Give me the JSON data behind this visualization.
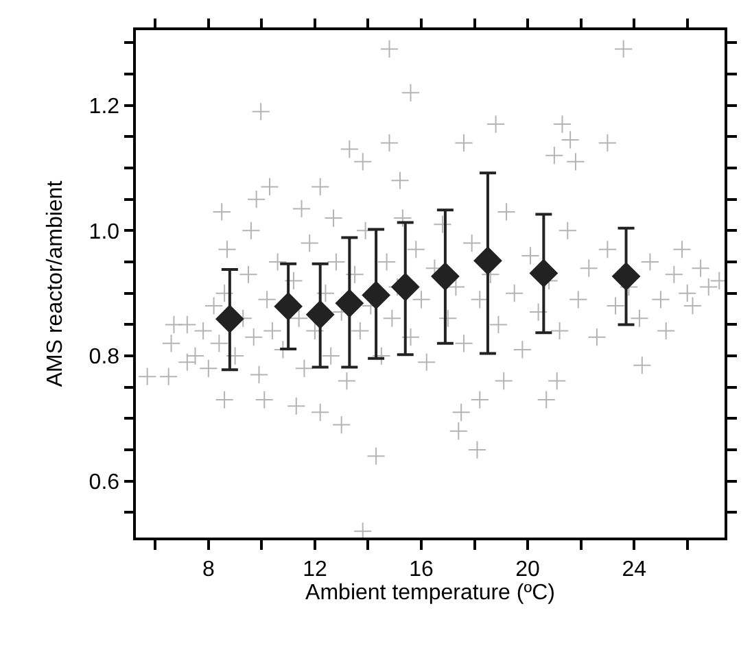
{
  "chart_data": {
    "type": "scatter",
    "xlabel": "Ambient temperature (ºC)",
    "ylabel": "AMS reactor/ambient",
    "xlim": [
      5.27,
      27.4
    ],
    "ylim": [
      0.51,
      1.32
    ],
    "xticks": [
      {
        "value": 6,
        "label": null
      },
      8,
      {
        "value": 10,
        "label": null
      },
      12,
      {
        "value": 14,
        "label": null
      },
      16,
      {
        "value": 18,
        "label": null
      },
      20,
      {
        "value": 22,
        "label": null
      },
      24,
      {
        "value": 26,
        "label": null
      }
    ],
    "yticks": [
      {
        "value": 0.55,
        "label": null
      },
      {
        "value": 0.6,
        "label": "0.6"
      },
      {
        "value": 0.65,
        "label": null
      },
      {
        "value": 0.7,
        "label": null
      },
      {
        "value": 0.75,
        "label": null
      },
      {
        "value": 0.8,
        "label": "0.8"
      },
      {
        "value": 0.85,
        "label": null
      },
      {
        "value": 0.9,
        "label": null
      },
      {
        "value": 0.95,
        "label": null
      },
      {
        "value": 1.0,
        "label": "1.0"
      },
      {
        "value": 1.05,
        "label": null
      },
      {
        "value": 1.1,
        "label": null
      },
      {
        "value": 1.15,
        "label": null
      },
      {
        "value": 1.2,
        "label": "1.2"
      },
      {
        "value": 1.25,
        "label": null
      },
      {
        "value": 1.3,
        "label": null
      }
    ],
    "series": [
      {
        "marker": "cross",
        "color": "#b4b4b4",
        "x": [
          9.97,
          14.8,
          15.6,
          23.6,
          18.8,
          21.3,
          21.6,
          23.0,
          17.6,
          21.8,
          21.0,
          13.8,
          14.3,
          18.1,
          17.4,
          17.5,
          18.2,
          19.1,
          20.7,
          21.1,
          24.3,
          25.2,
          26.2,
          27.2,
          26.5,
          25.8,
          5.7,
          6.5,
          6.6,
          6.7,
          7.2,
          7.2,
          8.5,
          8.7,
          8.6,
          10.1,
          11.3,
          12.2,
          13.0,
          10.3,
          9.8,
          11.5,
          12.2,
          13.3,
          13.8,
          14.8,
          15.2,
          9.6,
          12.7,
          7.5,
          7.8,
          8.0,
          8.2,
          8.4,
          8.6,
          9.0,
          9.3,
          9.5,
          9.7,
          9.9,
          10.2,
          10.4,
          10.6,
          10.8,
          11.2,
          11.4,
          11.6,
          11.8,
          12.0,
          12.4,
          12.6,
          12.8,
          13.0,
          13.2,
          13.5,
          13.7,
          13.9,
          14.1,
          14.5,
          14.7,
          14.9,
          15.1,
          15.3,
          15.6,
          15.8,
          16.0,
          16.2,
          16.5,
          16.8,
          17.0,
          17.3,
          17.6,
          17.9,
          18.2,
          18.6,
          18.9,
          19.2,
          19.5,
          19.8,
          20.1,
          20.4,
          20.8,
          21.2,
          21.5,
          21.9,
          22.3,
          22.6,
          23.0,
          23.3,
          23.8,
          24.2,
          24.6,
          25.0,
          25.5,
          26.0,
          26.8
        ],
        "values": [
          1.19,
          1.29,
          1.22,
          1.29,
          1.17,
          1.17,
          1.145,
          1.14,
          1.14,
          1.11,
          1.12,
          0.52,
          0.64,
          0.65,
          0.68,
          0.71,
          0.73,
          0.76,
          0.73,
          0.76,
          0.785,
          0.84,
          0.88,
          0.92,
          0.94,
          0.97,
          0.767,
          0.767,
          0.82,
          0.85,
          0.85,
          0.79,
          1.03,
          0.97,
          0.73,
          0.73,
          0.72,
          0.71,
          0.69,
          1.07,
          1.05,
          1.035,
          1.07,
          1.13,
          1.11,
          1.14,
          1.08,
          1.0,
          1.02,
          0.8,
          0.84,
          0.78,
          0.88,
          0.82,
          0.9,
          0.8,
          0.86,
          0.93,
          0.83,
          0.77,
          0.89,
          0.84,
          0.95,
          0.81,
          0.92,
          0.86,
          0.78,
          0.98,
          0.84,
          0.9,
          0.8,
          0.95,
          0.87,
          0.76,
          0.93,
          0.84,
          1.0,
          0.88,
          0.8,
          0.95,
          0.86,
          0.91,
          1.02,
          0.83,
          0.97,
          0.89,
          0.79,
          0.94,
          1.01,
          0.86,
          0.91,
          0.82,
          0.98,
          0.89,
          0.93,
          0.85,
          1.03,
          0.9,
          0.81,
          0.96,
          0.87,
          0.92,
          0.84,
          1.0,
          0.89,
          0.94,
          0.83,
          0.97,
          0.88,
          0.91,
          0.86,
          0.95,
          0.89,
          0.93,
          0.9,
          0.91
        ]
      },
      {
        "marker": "diamond",
        "color": "#222222",
        "x": [
          8.8,
          11.0,
          12.2,
          13.3,
          14.3,
          15.4,
          16.9,
          18.5,
          20.6,
          23.7
        ],
        "values": [
          0.859,
          0.879,
          0.866,
          0.884,
          0.897,
          0.91,
          0.927,
          0.952,
          0.932,
          0.927
        ],
        "errors": [
          [
            0.778,
            0.938
          ],
          [
            0.811,
            0.947
          ],
          [
            0.782,
            0.947
          ],
          [
            0.782,
            0.989
          ],
          [
            0.796,
            1.002
          ],
          [
            0.802,
            1.013
          ],
          [
            0.82,
            1.033
          ],
          [
            0.804,
            1.092
          ],
          [
            0.837,
            1.026
          ],
          [
            0.85,
            1.004
          ]
        ]
      }
    ]
  }
}
